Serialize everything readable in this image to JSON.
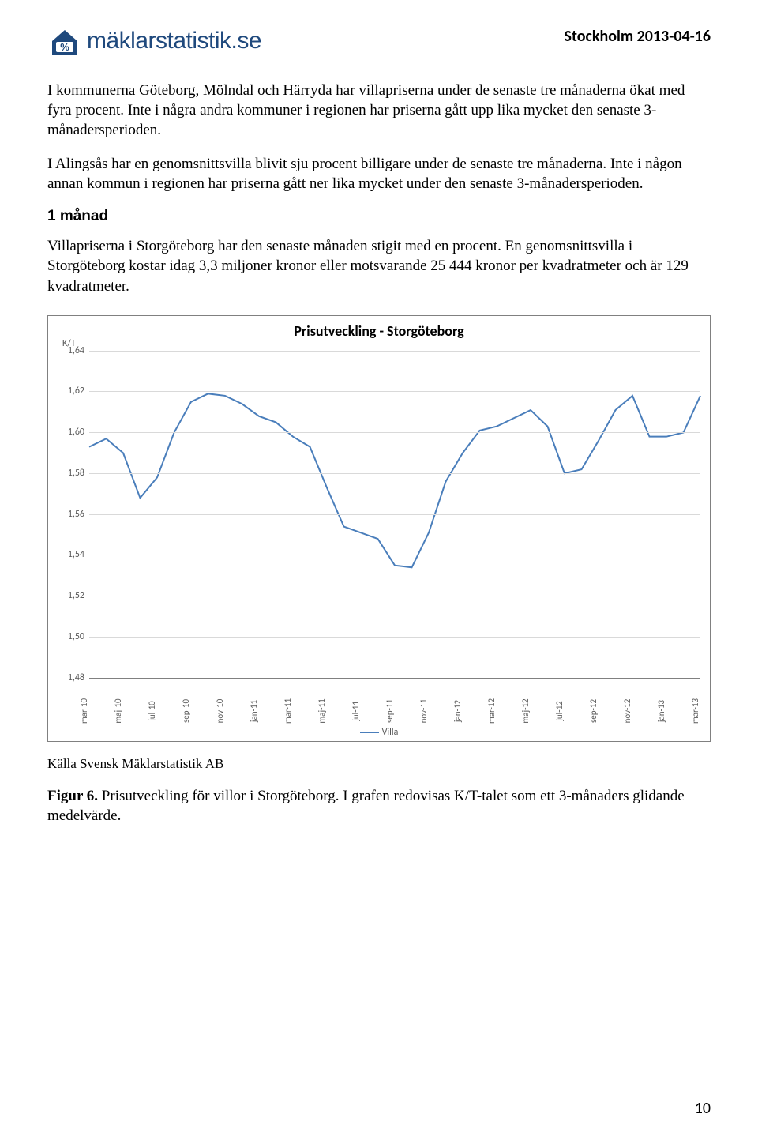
{
  "header": {
    "logo_text": "mäklarstatistik.se",
    "date": "Stockholm 2013-04-16"
  },
  "paragraphs": {
    "p1": "I kommunerna Göteborg, Mölndal och Härryda har villapriserna under de senaste tre månaderna ökat med fyra procent. Inte i några andra kommuner i regionen har priserna gått upp lika mycket den senaste 3-månadersperioden.",
    "p2": "I Alingsås har en genomsnittsvilla blivit sju procent billigare under de senaste tre månaderna. Inte i någon annan kommun i regionen har priserna gått ner lika mycket under den senaste 3-månadersperioden.",
    "section_head": "1 månad",
    "p3": "Villapriserna i Storgöteborg har den senaste månaden stigit med en procent. En genomsnittsvilla i Storgöteborg kostar idag 3,3 miljoner kronor eller motsvarande 25 444 kronor per kvadratmeter och är 129 kvadratmeter."
  },
  "chart": {
    "type": "line",
    "title": "Prisutveckling - Storgöteborg",
    "title_fontsize": 18,
    "y_axis_label": "K/T",
    "ylim": [
      1.48,
      1.64
    ],
    "ytick_step": 0.02,
    "y_ticks": [
      "1,48",
      "1,50",
      "1,52",
      "1,54",
      "1,56",
      "1,58",
      "1,60",
      "1,62",
      "1,64"
    ],
    "grid_color": "#d9d9d9",
    "axis_line_color": "#808080",
    "line_color": "#4a7ebb",
    "line_width": 2,
    "background_color": "#ffffff",
    "x_labels": [
      "mar-10",
      "maj-10",
      "jul-10",
      "sep-10",
      "nov-10",
      "jan-11",
      "mar-11",
      "maj-11",
      "jul-11",
      "sep-11",
      "nov-11",
      "jan-12",
      "mar-12",
      "maj-12",
      "jul-12",
      "sep-12",
      "nov-12",
      "jan-13",
      "mar-13"
    ],
    "series": {
      "name": "Villa",
      "values": [
        1.593,
        1.597,
        1.59,
        1.568,
        1.578,
        1.6,
        1.615,
        1.619,
        1.618,
        1.614,
        1.608,
        1.605,
        1.598,
        1.593,
        1.573,
        1.554,
        1.551,
        1.548,
        1.535,
        1.534,
        1.551,
        1.576,
        1.59,
        1.601,
        1.603,
        1.607,
        1.611,
        1.603,
        1.58,
        1.582,
        1.596,
        1.611,
        1.618,
        1.598,
        1.598,
        1.6,
        1.618
      ]
    },
    "legend_label": "Villa"
  },
  "footer": {
    "source": "Källa Svensk Mäklarstatistik AB",
    "caption_bold": "Figur 6.",
    "caption_rest": " Prisutveckling för villor i Storgöteborg. I grafen redovisas K/T-talet som ett 3-månaders glidande medelvärde.",
    "page_number": "10"
  }
}
